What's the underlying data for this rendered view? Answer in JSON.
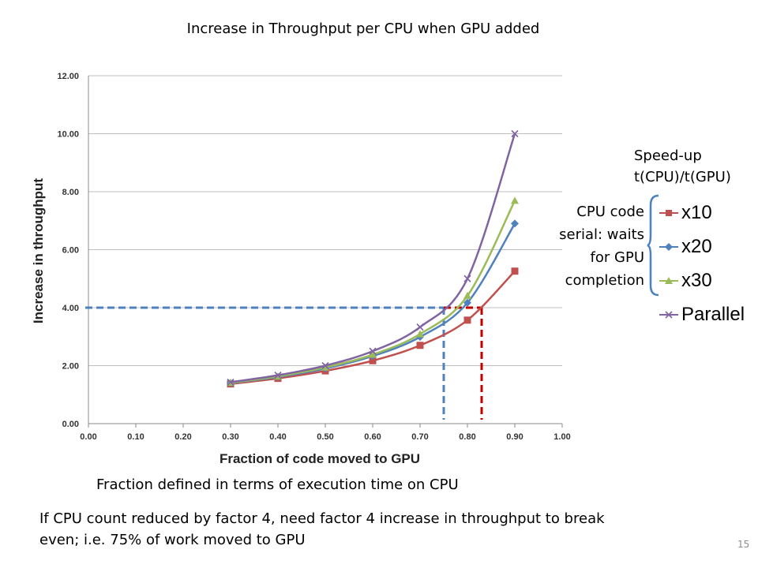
{
  "slide": {
    "title": "Increase in Throughput per CPU when GPU added",
    "speedup_label_line1": "Speed-up",
    "speedup_label_line2": "t(CPU)/t(GPU)",
    "cpu_note_lines": [
      "CPU code",
      "serial: waits",
      "for GPU",
      "completion"
    ],
    "fraction_note": "Fraction defined in terms of execution time on CPU",
    "footnote_line1": "If CPU count reduced by factor 4, need factor 4 increase in throughput to break",
    "footnote_line2": "even; i.e. 75% of work moved to GPU",
    "page_number": "15"
  },
  "chart_data": {
    "type": "line",
    "xlabel": "Fraction of code moved to GPU",
    "ylabel": "Increase in throughput",
    "xlim": [
      0,
      1
    ],
    "ylim": [
      0,
      12
    ],
    "x_ticks": [
      "0.00",
      "0.10",
      "0.20",
      "0.30",
      "0.40",
      "0.50",
      "0.60",
      "0.70",
      "0.80",
      "0.90",
      "1.00"
    ],
    "y_ticks": [
      "0.00",
      "2.00",
      "4.00",
      "6.00",
      "8.00",
      "10.00",
      "12.00"
    ],
    "grid": "horizontal",
    "legend_position": "right",
    "x": [
      0.3,
      0.4,
      0.5,
      0.6,
      0.7,
      0.8,
      0.9
    ],
    "series": [
      {
        "name": "x10",
        "color": "#C0504D",
        "marker": "square",
        "values": [
          1.37,
          1.56,
          1.82,
          2.17,
          2.7,
          3.57,
          5.26
        ]
      },
      {
        "name": "x20",
        "color": "#4F81BD",
        "marker": "diamond",
        "values": [
          1.4,
          1.61,
          1.9,
          2.33,
          2.99,
          4.17,
          6.9
        ]
      },
      {
        "name": "x30",
        "color": "#9BBB59",
        "marker": "triangle",
        "values": [
          1.41,
          1.63,
          1.94,
          2.38,
          3.09,
          4.41,
          7.69
        ]
      },
      {
        "name": "Parallel",
        "color": "#8064A2",
        "marker": "x",
        "values": [
          1.43,
          1.67,
          2.0,
          2.5,
          3.33,
          5.0,
          10.0
        ]
      }
    ],
    "annotations": [
      {
        "color": "#4F81BD",
        "x": 0.75,
        "y": 4.0,
        "style": "dashed"
      },
      {
        "color": "#C00000",
        "x": 0.83,
        "y": 4.0,
        "style": "dashed"
      }
    ]
  }
}
